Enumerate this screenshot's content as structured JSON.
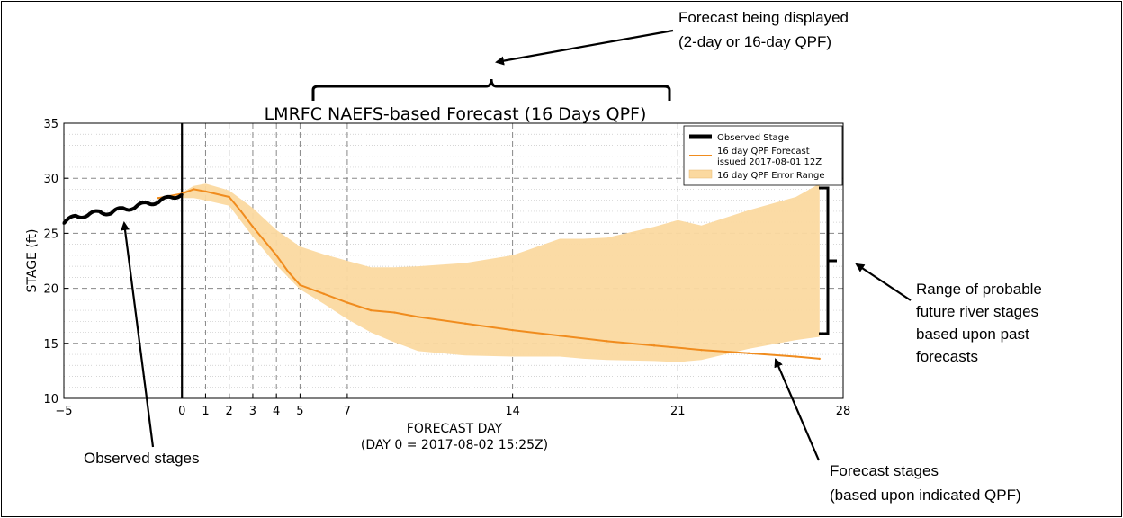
{
  "chart_data": {
    "type": "line",
    "title": "LMRFC NAEFS-based Forecast (16 Days QPF)",
    "xlabel": "FORECAST DAY",
    "xlabel_sub": "(DAY 0 = 2017-08-02 15:25Z)",
    "ylabel": "STAGE (ft)",
    "xlim": [
      -5,
      28
    ],
    "ylim": [
      10,
      35
    ],
    "x_ticks": [
      -5,
      0,
      1,
      2,
      3,
      4,
      5,
      7,
      14,
      21,
      28
    ],
    "x_tick_labels": [
      "−5",
      "0",
      "1",
      "2",
      "3",
      "4",
      "5",
      "7",
      "14",
      "21",
      "28"
    ],
    "y_ticks": [
      10,
      15,
      20,
      25,
      30,
      35
    ],
    "grid": true,
    "legend_position": "top-right",
    "series": [
      {
        "name": "Observed Stage",
        "color": "#000000",
        "x": [
          -5,
          -4.5,
          -4,
          -3.5,
          -3,
          -2.5,
          -2,
          -1.5,
          -1,
          -0.5,
          0
        ],
        "y": [
          25.9,
          26.6,
          26.6,
          27.0,
          26.8,
          27.3,
          27.3,
          27.8,
          27.8,
          28.3,
          28.5
        ]
      },
      {
        "name": "16 day QPF Forecast",
        "name_line2": "issued 2017-08-01 12Z",
        "color": "#f08c1e",
        "x": [
          -1,
          0,
          0.5,
          1,
          2,
          2.5,
          3,
          3.5,
          4,
          4.5,
          5,
          6,
          7,
          8,
          9,
          10,
          12,
          14,
          16,
          18,
          20,
          22,
          24,
          26,
          27
        ],
        "y": [
          28.2,
          28.6,
          29.0,
          28.8,
          28.3,
          27.0,
          25.6,
          24.3,
          23.0,
          21.5,
          20.3,
          19.5,
          18.7,
          18.0,
          17.8,
          17.4,
          16.8,
          16.2,
          15.7,
          15.2,
          14.8,
          14.4,
          14.1,
          13.8,
          13.6
        ]
      }
    ],
    "error_range": {
      "name": "16 day QPF Error Range",
      "color": "#fbd9a0",
      "x": [
        0,
        0.5,
        1,
        2,
        3,
        4,
        5,
        6,
        7,
        8,
        9,
        10,
        12,
        14,
        16,
        17,
        18,
        20,
        21,
        22,
        24,
        26,
        27
      ],
      "upper": [
        28.7,
        29.3,
        29.5,
        28.9,
        27.3,
        25.3,
        23.8,
        23.1,
        22.5,
        21.9,
        21.9,
        22.0,
        22.3,
        23.0,
        24.5,
        24.5,
        24.6,
        25.6,
        26.2,
        25.7,
        27.1,
        28.3,
        29.5
      ],
      "lower": [
        28.2,
        28.2,
        28.0,
        27.5,
        24.7,
        22.1,
        19.9,
        18.6,
        17.2,
        16.0,
        15.1,
        14.3,
        13.9,
        13.8,
        13.8,
        13.6,
        13.5,
        13.4,
        13.3,
        13.5,
        14.5,
        15.3,
        15.6
      ]
    }
  },
  "annotations": {
    "forecast_displayed": [
      "Forecast being displayed",
      "(2-day or 16-day QPF)"
    ],
    "range": [
      "Range of probable",
      "future river stages",
      "based upon past",
      "forecasts"
    ],
    "observed": "Observed stages",
    "forecast_stages": [
      "Forecast stages",
      "(based upon indicated QPF)"
    ]
  }
}
